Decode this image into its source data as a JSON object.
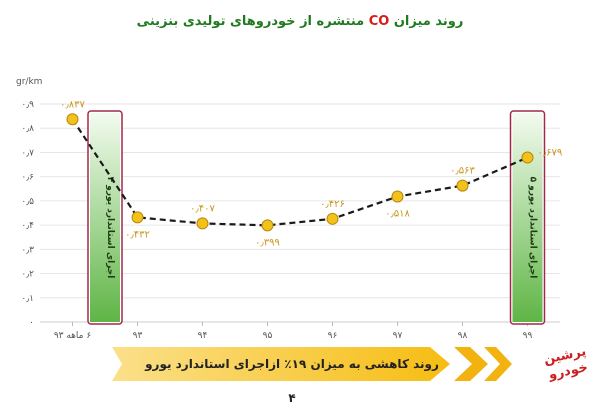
{
  "header": {
    "title_pre": "روند میزان ",
    "title_highlight": "CO",
    "title_post": " منتشره از خودروهای تولیدی بنزینی"
  },
  "chart_data": {
    "type": "line",
    "title": "روند میزان CO منتشره از خودروهای تولیدی بنزینی",
    "ylabel": "gr/km",
    "xlabel": "",
    "ylim": [
      0,
      0.9
    ],
    "y_ticks": [
      "۰",
      "۰٫۱",
      "۰٫۲",
      "۰٫۳",
      "۰٫۴",
      "۰٫۵",
      "۰٫۶",
      "۰٫۷",
      "۰٫۸",
      "۰٫۹"
    ],
    "categories": [
      "۶ ماهه ۹۳",
      "۹۳",
      "۹۴",
      "۹۵",
      "۹۶",
      "۹۷",
      "۹۸",
      "۹۹"
    ],
    "values": [
      0.837,
      0.432,
      0.407,
      0.399,
      0.426,
      0.518,
      0.563,
      0.679
    ],
    "data_labels": [
      "۰٫۸۳۷",
      "۰٫۴۳۲",
      "۰٫۴۰۷",
      "۰٫۳۹۹",
      "۰٫۴۲۶",
      "۰٫۵۱۸",
      "۰٫۵۶۳",
      "۰٫۶۷۹"
    ],
    "label_pos": [
      "above",
      "below",
      "above",
      "below",
      "above",
      "below",
      "above",
      "right"
    ],
    "grid": true,
    "colors": {
      "line": "#1a1a1a",
      "marker": "#f2c21a",
      "marker_stroke": "#b8860b",
      "label": "#c8961e",
      "axis_text": "#555555"
    },
    "annotations": [
      {
        "text": "اجرای استاندارد یورو ۴",
        "between": [
          0,
          1
        ]
      },
      {
        "text": "اجرای استاندارد یورو ۵",
        "at": 7
      }
    ]
  },
  "banner": {
    "text": "روند کاهشی به میزان ۱۹٪ ازاجرای استاندارد یورو ۴",
    "colors": {
      "arrow": "#f7c21b",
      "stripe": "#e3a508"
    }
  },
  "logo": {
    "line1": "پرشین",
    "line2": "خودرو"
  }
}
